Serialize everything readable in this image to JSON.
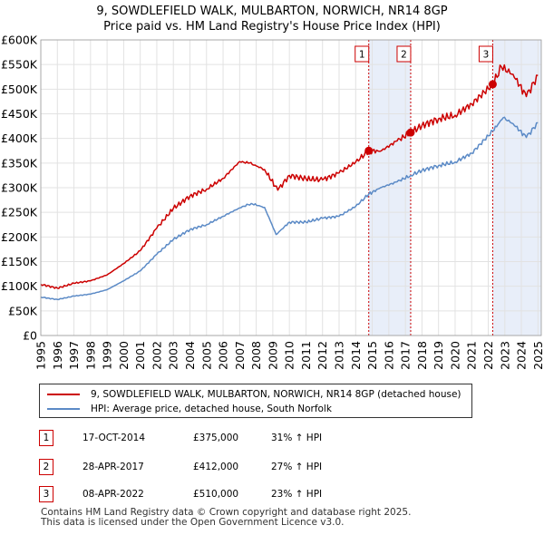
{
  "chart_data": {
    "type": "line",
    "title": "9, SOWDLEFIELD WALK, MULBARTON, NORWICH, NR14 8GP",
    "subtitle": "Price paid vs. HM Land Registry's House Price Index (HPI)",
    "xlim": [
      1995.0,
      2025.2
    ],
    "ylim": [
      0,
      600000
    ],
    "x_ticks": [
      1995,
      1996,
      1997,
      1998,
      1999,
      2000,
      2001,
      2002,
      2003,
      2004,
      2005,
      2006,
      2007,
      2008,
      2009,
      2010,
      2011,
      2012,
      2013,
      2014,
      2015,
      2016,
      2017,
      2018,
      2019,
      2020,
      2021,
      2022,
      2023,
      2024,
      2025
    ],
    "y_ticks": [
      0,
      50000,
      100000,
      150000,
      200000,
      250000,
      300000,
      350000,
      400000,
      450000,
      500000,
      550000,
      600000
    ],
    "y_tick_labels": [
      "£0",
      "£50K",
      "£100K",
      "£150K",
      "£200K",
      "£250K",
      "£300K",
      "£350K",
      "£400K",
      "£450K",
      "£500K",
      "£550K",
      "£600K"
    ],
    "grid": true,
    "series": [
      {
        "name": "9, SOWDLEFIELD WALK, MULBARTON, NORWICH, NR14 8GP (detached house)",
        "color": "#cc0000",
        "x": [
          1995.0,
          1996.0,
          1997.0,
          1998.0,
          1999.0,
          2000.0,
          2001.0,
          2002.0,
          2003.0,
          2004.0,
          2005.0,
          2006.0,
          2007.0,
          2007.6,
          2008.5,
          2009.3,
          2010.0,
          2011.0,
          2012.0,
          2013.0,
          2014.0,
          2014.79,
          2015.5,
          2016.5,
          2017.32,
          2018.0,
          2019.0,
          2020.0,
          2021.0,
          2022.27,
          2022.8,
          2023.5,
          2024.3,
          2025.0
        ],
        "y": [
          104000,
          96000,
          106000,
          111000,
          123000,
          146000,
          172000,
          218000,
          258000,
          283000,
          297000,
          319000,
          353000,
          350000,
          337000,
          295000,
          325000,
          318000,
          316000,
          330000,
          352000,
          375000,
          374000,
          395000,
          412000,
          426000,
          440000,
          447000,
          470000,
          510000,
          545000,
          530000,
          485000,
          528000
        ]
      },
      {
        "name": "HPI: Average price, detached house, South Norfolk",
        "color": "#5b8ac6",
        "x": [
          1995.0,
          1996.0,
          1997.0,
          1998.0,
          1999.0,
          2000.0,
          2001.0,
          2002.0,
          2003.0,
          2004.0,
          2005.0,
          2006.0,
          2007.0,
          2007.7,
          2008.5,
          2009.2,
          2010.0,
          2011.0,
          2012.0,
          2013.0,
          2014.0,
          2014.79,
          2015.5,
          2016.5,
          2017.32,
          2018.0,
          2019.0,
          2020.0,
          2021.0,
          2022.27,
          2022.9,
          2023.5,
          2024.3,
          2025.0
        ],
        "y": [
          78000,
          73000,
          80000,
          84000,
          93000,
          111000,
          131000,
          165000,
          195000,
          215000,
          225000,
          242000,
          259000,
          268000,
          260000,
          205000,
          230000,
          230000,
          238000,
          242000,
          262000,
          287000,
          300000,
          312000,
          325000,
          335000,
          345000,
          352000,
          370000,
          415000,
          442000,
          430000,
          402000,
          432000
        ]
      }
    ],
    "sales": [
      {
        "label": "1",
        "x": 2014.79,
        "y": 375000
      },
      {
        "label": "2",
        "x": 2017.32,
        "y": 412000
      },
      {
        "label": "3",
        "x": 2022.27,
        "y": 510000
      }
    ],
    "shaded_spans": [
      [
        2014.79,
        2017.32
      ],
      [
        2022.27,
        2025.2
      ]
    ]
  },
  "legend": {
    "property_label": "9, SOWDLEFIELD WALK, MULBARTON, NORWICH, NR14 8GP (detached house)",
    "hpi_label": "HPI: Average price, detached house, South Norfolk"
  },
  "transactions": [
    {
      "num": "1",
      "date": "17-OCT-2014",
      "price": "£375,000",
      "hpi": "31% ↑ HPI"
    },
    {
      "num": "2",
      "date": "28-APR-2017",
      "price": "£412,000",
      "hpi": "27% ↑ HPI"
    },
    {
      "num": "3",
      "date": "08-APR-2022",
      "price": "£510,000",
      "hpi": "23% ↑ HPI"
    }
  ],
  "footer": {
    "line1": "Contains HM Land Registry data © Crown copyright and database right 2025.",
    "line2": "This data is licensed under the Open Government Licence v3.0."
  }
}
